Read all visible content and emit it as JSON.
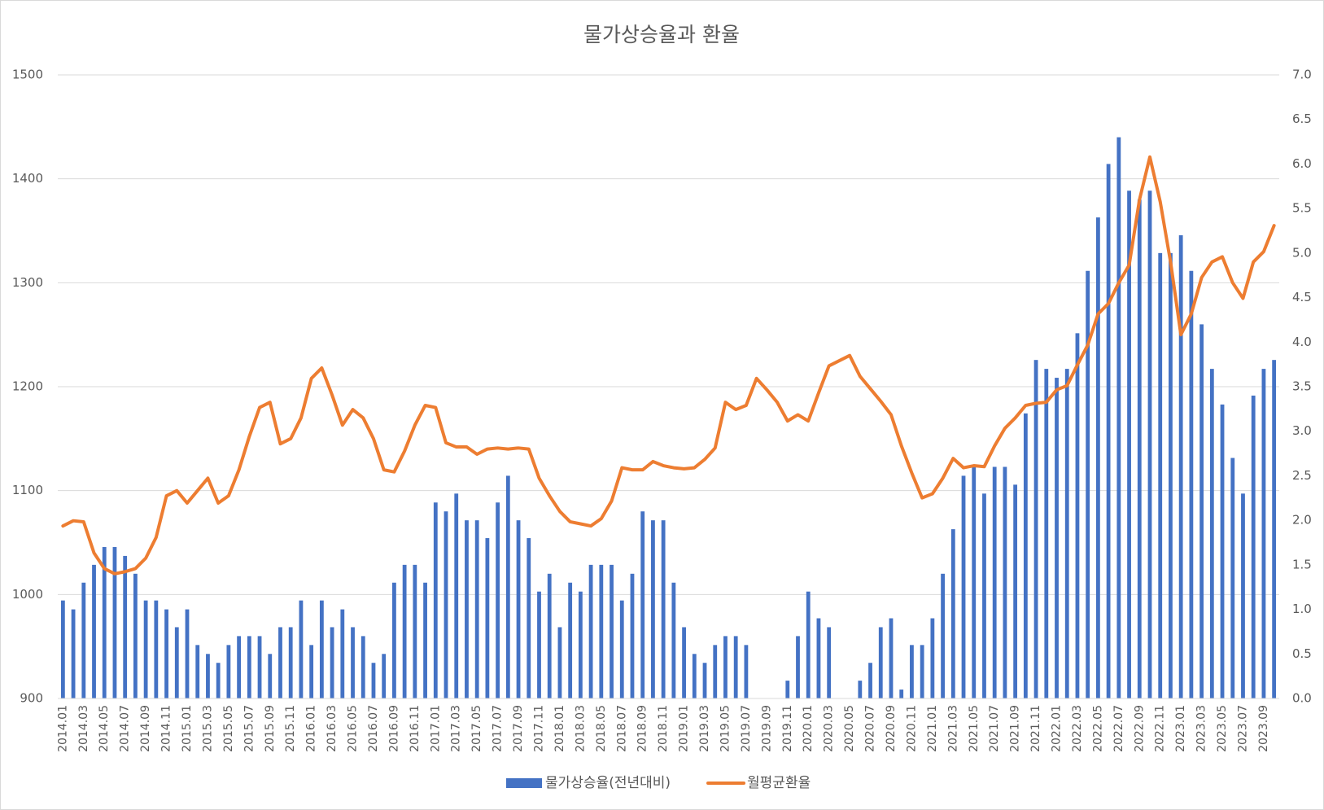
{
  "chart_data": {
    "type": "bar-line",
    "title": "물가상승율과 환율",
    "categories": [
      "2014.01",
      null,
      "2014.03",
      null,
      "2014.05",
      null,
      "2014.07",
      null,
      "2014.09",
      null,
      "2014.11",
      null,
      "2015.01",
      null,
      "2015.03",
      null,
      "2015.05",
      null,
      "2015.07",
      null,
      "2015.09",
      null,
      "2015.11",
      null,
      "2016.01",
      null,
      "2016.03",
      null,
      "2016.05",
      null,
      "2016.07",
      null,
      "2016.09",
      null,
      "2016.11",
      null,
      "2017.01",
      null,
      "2017.03",
      null,
      "2017.05",
      null,
      "2017.07",
      null,
      "2017.09",
      null,
      "2017.11",
      null,
      "2018.01",
      null,
      "2018.03",
      null,
      "2018.05",
      null,
      "2018.07",
      null,
      "2018.09",
      null,
      "2018.11",
      null,
      "2019.01",
      null,
      "2019.03",
      null,
      "2019.05",
      null,
      "2019.07",
      null,
      "2019.09",
      null,
      "2019.11",
      null,
      "2020.01",
      null,
      "2020.03",
      null,
      "2020.05",
      null,
      "2020.07",
      null,
      "2020.09",
      null,
      "2020.11",
      null,
      "2021.01",
      null,
      "2021.03",
      null,
      "2021.05",
      null,
      "2021.07",
      null,
      "2021.09",
      null,
      "2021.11",
      null,
      "2022.01",
      null,
      "2022.03",
      null,
      "2022.05",
      null,
      "2022.07",
      null,
      "2022.09",
      null,
      "2022.11",
      null,
      "2023.01",
      null,
      "2023.03",
      null,
      "2023.05",
      null,
      "2023.07",
      null,
      "2023.09",
      null
    ],
    "series": [
      {
        "name": "물가상승율(전년대비)",
        "type": "bar",
        "axis": "y2",
        "color": "#4472c4",
        "values": [
          1.1,
          1.0,
          1.3,
          1.5,
          1.7,
          1.7,
          1.6,
          1.4,
          1.1,
          1.1,
          1.0,
          0.8,
          1.0,
          0.6,
          0.5,
          0.4,
          0.6,
          0.7,
          0.7,
          0.7,
          0.5,
          0.8,
          0.8,
          1.1,
          0.6,
          1.1,
          0.8,
          1.0,
          0.8,
          0.7,
          0.4,
          0.5,
          1.3,
          1.5,
          1.5,
          1.3,
          2.2,
          2.1,
          2.3,
          2.0,
          2.0,
          1.8,
          2.2,
          2.5,
          2.0,
          1.8,
          1.2,
          1.4,
          0.8,
          1.3,
          1.2,
          1.5,
          1.5,
          1.5,
          1.1,
          1.4,
          2.1,
          2.0,
          2.0,
          1.3,
          0.8,
          0.5,
          0.4,
          0.6,
          0.7,
          0.7,
          0.6,
          0,
          0,
          0,
          0.2,
          0.7,
          1.2,
          0.9,
          0.8,
          0,
          0,
          0.2,
          0.4,
          0.8,
          0.9,
          0.1,
          0.6,
          0.6,
          0.9,
          1.4,
          1.9,
          2.5,
          2.6,
          2.3,
          2.6,
          2.6,
          2.4,
          3.2,
          3.8,
          3.7,
          3.6,
          3.7,
          4.1,
          4.8,
          5.4,
          6.0,
          6.3,
          5.7,
          5.6,
          5.7,
          5.0,
          5.0,
          5.2,
          4.8,
          4.2,
          3.7,
          3.3,
          2.7,
          2.3,
          3.4,
          3.7,
          3.8
        ]
      },
      {
        "name": "월평균환율",
        "type": "line",
        "axis": "y",
        "color": "#ed7d31",
        "values": [
          1066,
          1071,
          1070,
          1040,
          1025,
          1020,
          1022,
          1025,
          1035,
          1055,
          1095,
          1100,
          1088,
          1100,
          1112,
          1088,
          1095,
          1120,
          1152,
          1180,
          1185,
          1145,
          1150,
          1170,
          1208,
          1218,
          1192,
          1163,
          1178,
          1170,
          1150,
          1120,
          1118,
          1138,
          1163,
          1182,
          1180,
          1146,
          1142,
          1142,
          1135,
          1140,
          1141,
          1140,
          1141,
          1140,
          1112,
          1095,
          1080,
          1070,
          1068,
          1066,
          1073,
          1090,
          1122,
          1120,
          1120,
          1128,
          1124,
          1122,
          1121,
          1122,
          1130,
          1141,
          1185,
          1178,
          1182,
          1208,
          1197,
          1185,
          1167,
          1173,
          1167,
          1194,
          1220,
          1225,
          1230,
          1210,
          1198,
          1186,
          1173,
          1143,
          1117,
          1093,
          1097,
          1112,
          1131,
          1122,
          1124,
          1123,
          1143,
          1160,
          1170,
          1182,
          1184,
          1185,
          1197,
          1201,
          1221,
          1240,
          1270,
          1280,
          1300,
          1317,
          1380,
          1421,
          1378,
          1320,
          1250,
          1270,
          1305,
          1320,
          1325,
          1300,
          1285,
          1320,
          1330,
          1355
        ]
      }
    ],
    "ylim": [
      900,
      1500
    ],
    "yticks": [
      900,
      1000,
      1100,
      1200,
      1300,
      1400,
      1500
    ],
    "y2lim": [
      0,
      7
    ],
    "y2ticks": [
      {
        "value": 0,
        "label": "0.0"
      },
      0.5,
      {
        "value": 1,
        "label": "1.0"
      },
      1.5,
      {
        "value": 2,
        "label": "2.0"
      },
      2.5,
      {
        "value": 3,
        "label": "3.0"
      },
      3.5,
      {
        "value": 4,
        "label": "4.0"
      },
      4.5,
      {
        "value": 5,
        "label": "5.0"
      },
      5.5,
      {
        "value": 6,
        "label": "6.0"
      },
      6.5,
      {
        "value": 7,
        "label": "7.0"
      }
    ],
    "grid": true,
    "legend": "bottom"
  }
}
